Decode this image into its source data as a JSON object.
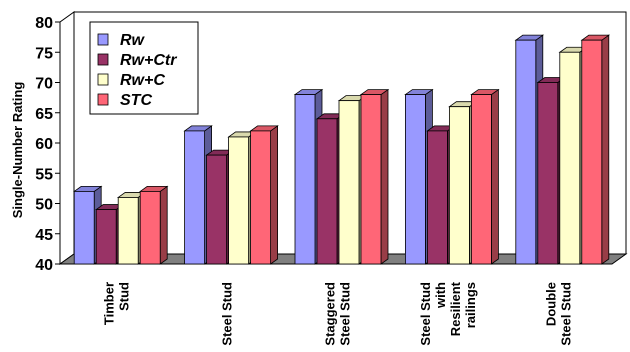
{
  "chart_data": {
    "type": "bar",
    "ylabel": "Single-Number Rating",
    "ylim": [
      40,
      80
    ],
    "yticks": [
      40,
      45,
      50,
      55,
      60,
      65,
      70,
      75,
      80
    ],
    "grid": false,
    "legend_position": "top-left",
    "categories": [
      [
        "Timber",
        "Stud"
      ],
      [
        "Steel Stud"
      ],
      [
        "Staggered",
        "Steel Stud"
      ],
      [
        "Steel Stud",
        "with",
        "Resilient",
        "railings"
      ],
      [
        "Double",
        "Steel Stud"
      ]
    ],
    "series": [
      {
        "name": "Rw",
        "color": "#9999ff",
        "values": [
          52,
          62,
          68,
          68,
          77
        ]
      },
      {
        "name": "Rw+Ctr",
        "color": "#993366",
        "values": [
          49,
          58,
          64,
          62,
          70
        ]
      },
      {
        "name": "Rw+C",
        "color": "#ffffcc",
        "values": [
          51,
          61,
          67,
          66,
          75
        ]
      },
      {
        "name": "STC",
        "color": "#ff6677",
        "values": [
          52,
          62,
          68,
          68,
          77
        ]
      }
    ]
  }
}
